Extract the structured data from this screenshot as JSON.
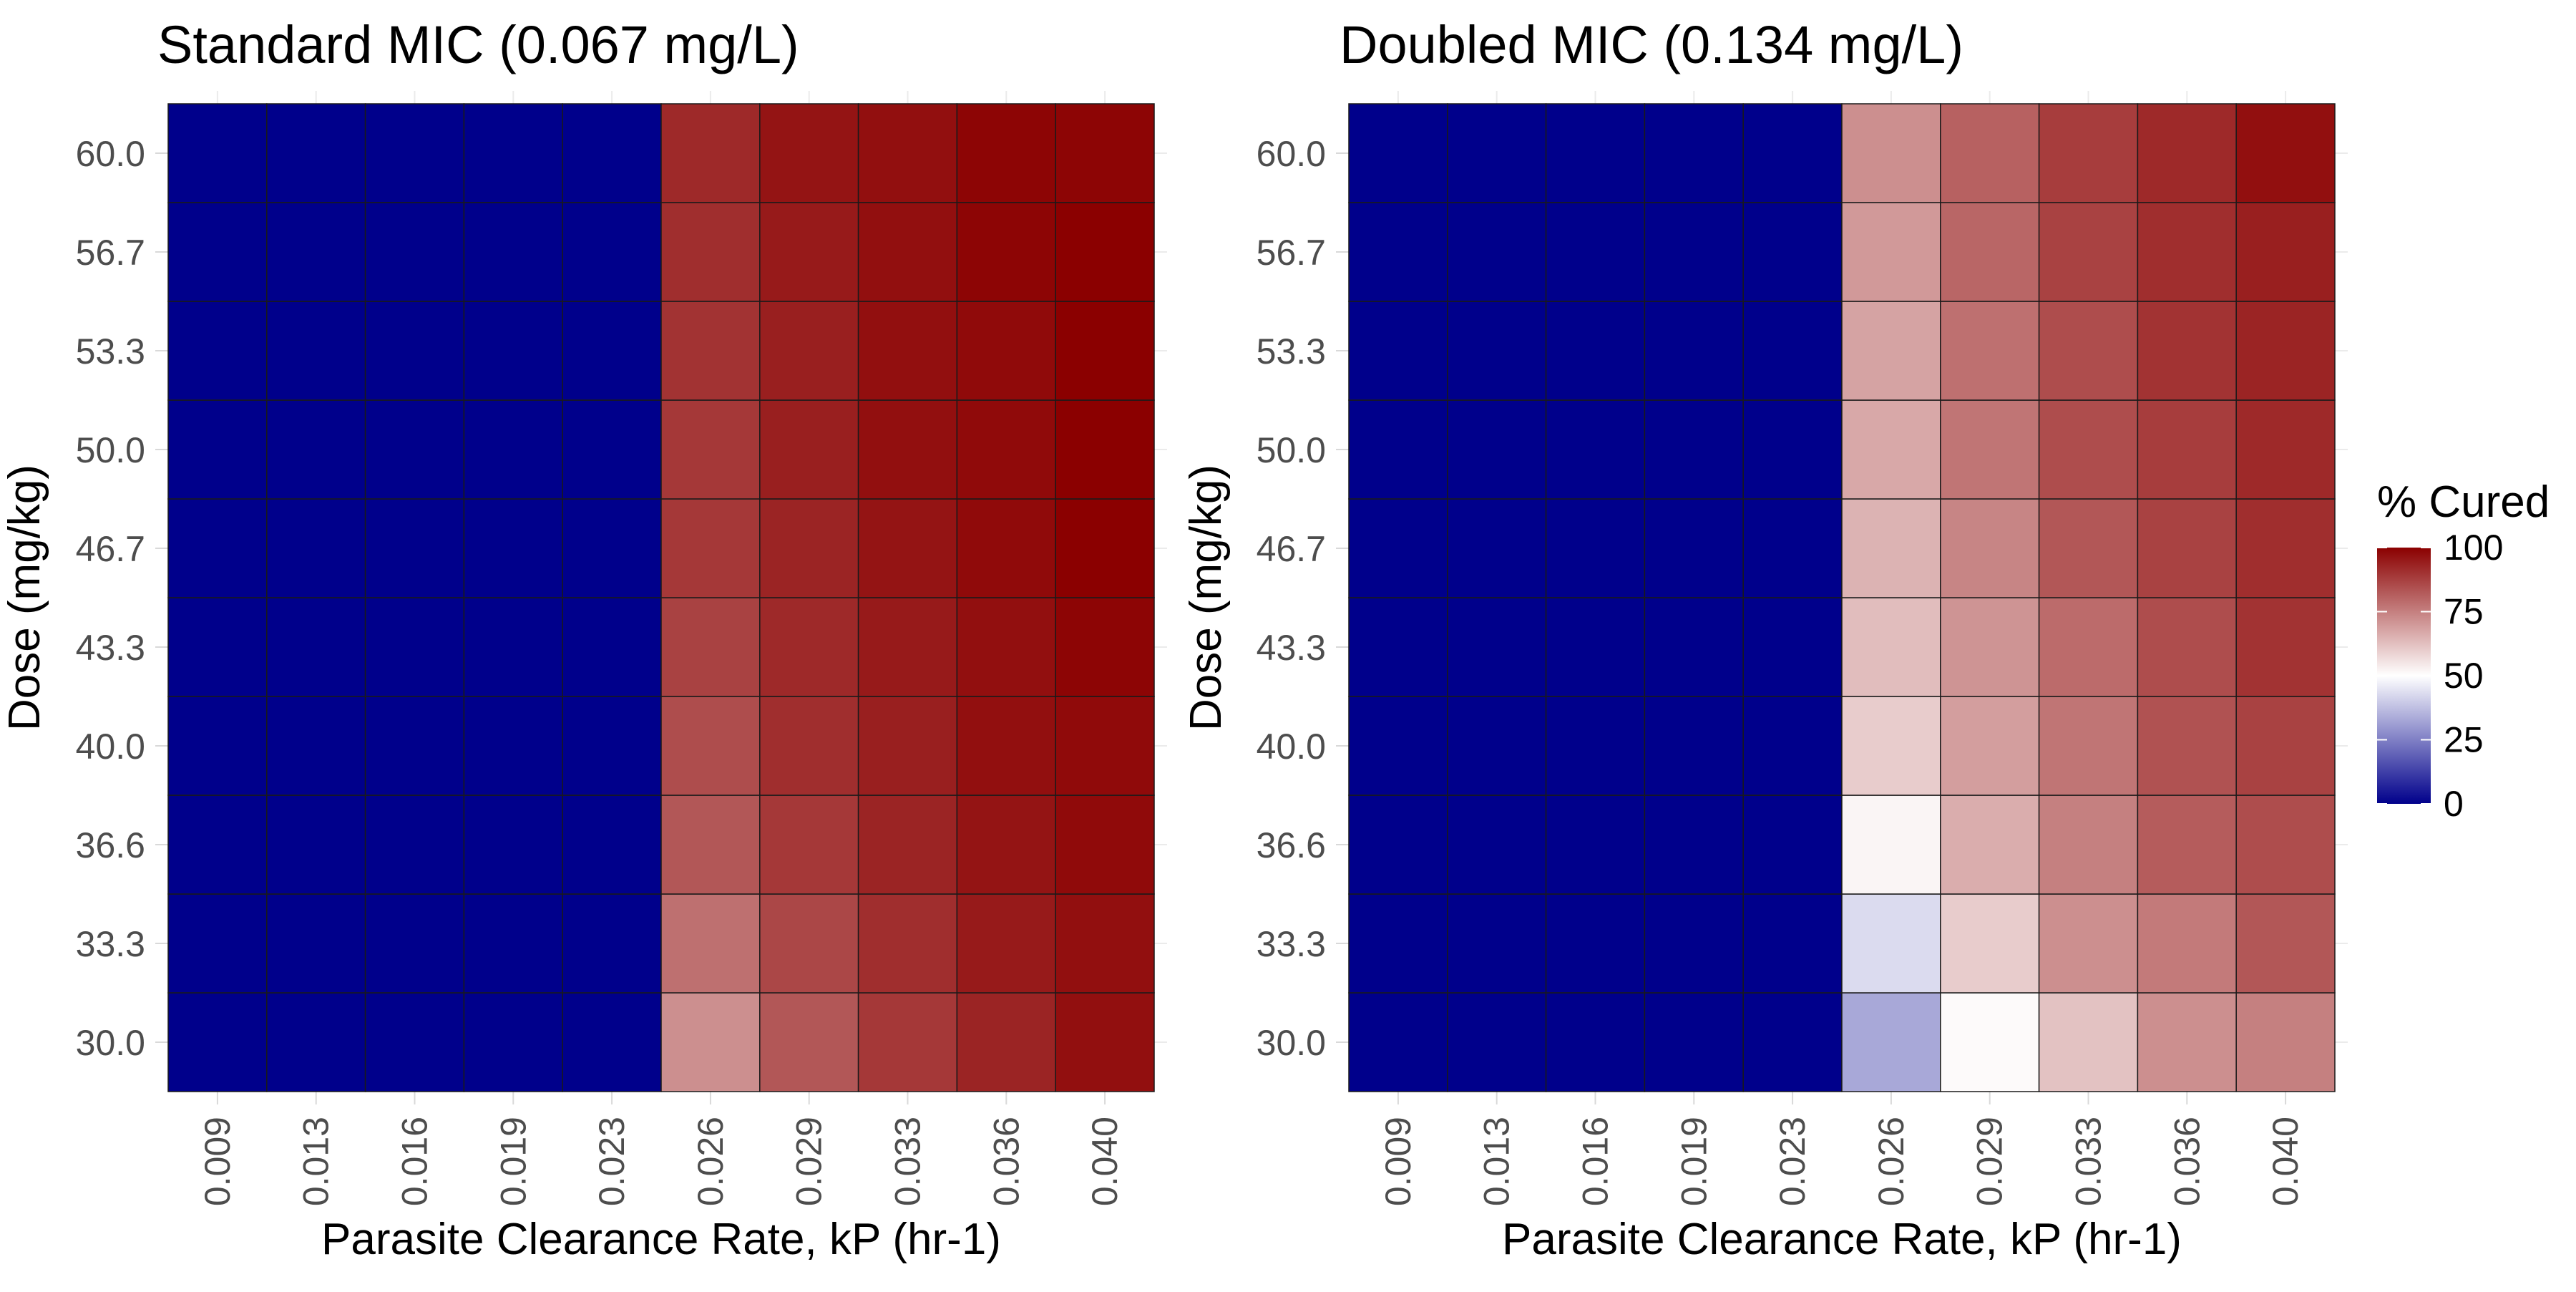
{
  "chart_data": [
    {
      "type": "heatmap",
      "title": "Standard MIC (0.067 mg/L)",
      "xlabel": "Parasite Clearance Rate, kP (hr-1)",
      "ylabel": "Dose (mg/kg)",
      "x": [
        "0.009",
        "0.013",
        "0.016",
        "0.019",
        "0.023",
        "0.026",
        "0.029",
        "0.033",
        "0.036",
        "0.040"
      ],
      "y": [
        "30.0",
        "33.3",
        "36.6",
        "40.0",
        "43.3",
        "46.7",
        "50.0",
        "53.3",
        "56.7",
        "60.0"
      ],
      "values": [
        [
          0,
          0,
          0,
          0,
          0,
          72,
          83,
          89,
          93,
          97
        ],
        [
          0,
          0,
          0,
          0,
          0,
          78,
          86,
          91,
          95,
          97
        ],
        [
          0,
          0,
          0,
          0,
          0,
          83,
          89,
          93,
          96,
          98
        ],
        [
          0,
          0,
          0,
          0,
          0,
          85,
          91,
          94,
          97,
          98
        ],
        [
          0,
          0,
          0,
          0,
          0,
          87,
          92,
          95,
          97,
          99
        ],
        [
          0,
          0,
          0,
          0,
          0,
          89,
          93,
          96,
          98,
          100
        ],
        [
          0,
          0,
          0,
          0,
          0,
          89,
          94,
          97,
          98,
          100
        ],
        [
          0,
          0,
          0,
          0,
          0,
          90,
          94,
          97,
          98,
          100
        ],
        [
          0,
          0,
          0,
          0,
          0,
          91,
          95,
          97,
          99,
          100
        ],
        [
          0,
          0,
          0,
          0,
          0,
          92,
          96,
          97,
          99,
          99
        ]
      ]
    },
    {
      "type": "heatmap",
      "title": "Doubled MIC (0.134 mg/L)",
      "xlabel": "Parasite Clearance Rate, kP (hr-1)",
      "ylabel": "Dose (mg/kg)",
      "x": [
        "0.009",
        "0.013",
        "0.016",
        "0.019",
        "0.023",
        "0.026",
        "0.029",
        "0.033",
        "0.036",
        "0.040"
      ],
      "y": [
        "30.0",
        "33.3",
        "36.6",
        "40.0",
        "43.3",
        "46.7",
        "50.0",
        "53.3",
        "56.7",
        "60.0"
      ],
      "values": [
        [
          0,
          0,
          0,
          0,
          0,
          33,
          51,
          62,
          72,
          75
        ],
        [
          0,
          0,
          0,
          0,
          0,
          43,
          60,
          72,
          76,
          83
        ],
        [
          0,
          0,
          0,
          0,
          0,
          52,
          66,
          75,
          82,
          85
        ],
        [
          0,
          0,
          0,
          0,
          0,
          60,
          69,
          77,
          84,
          87
        ],
        [
          0,
          0,
          0,
          0,
          0,
          63,
          71,
          79,
          85,
          90
        ],
        [
          0,
          0,
          0,
          0,
          0,
          65,
          74,
          83,
          87,
          91
        ],
        [
          0,
          0,
          0,
          0,
          0,
          67,
          77,
          85,
          88,
          92
        ],
        [
          0,
          0,
          0,
          0,
          0,
          68,
          78,
          85,
          90,
          93
        ],
        [
          0,
          0,
          0,
          0,
          0,
          70,
          80,
          87,
          91,
          94
        ],
        [
          0,
          0,
          0,
          0,
          0,
          72,
          81,
          88,
          92,
          97
        ]
      ]
    }
  ],
  "legend": {
    "title": "% Cured",
    "ticks": [
      "100",
      "75",
      "50",
      "25",
      "0"
    ],
    "scale": {
      "min": 0,
      "max": 100,
      "low_color": "#00008b",
      "mid_color": "#ffffff",
      "high_color": "#8b0000",
      "midpoint": 50
    }
  }
}
